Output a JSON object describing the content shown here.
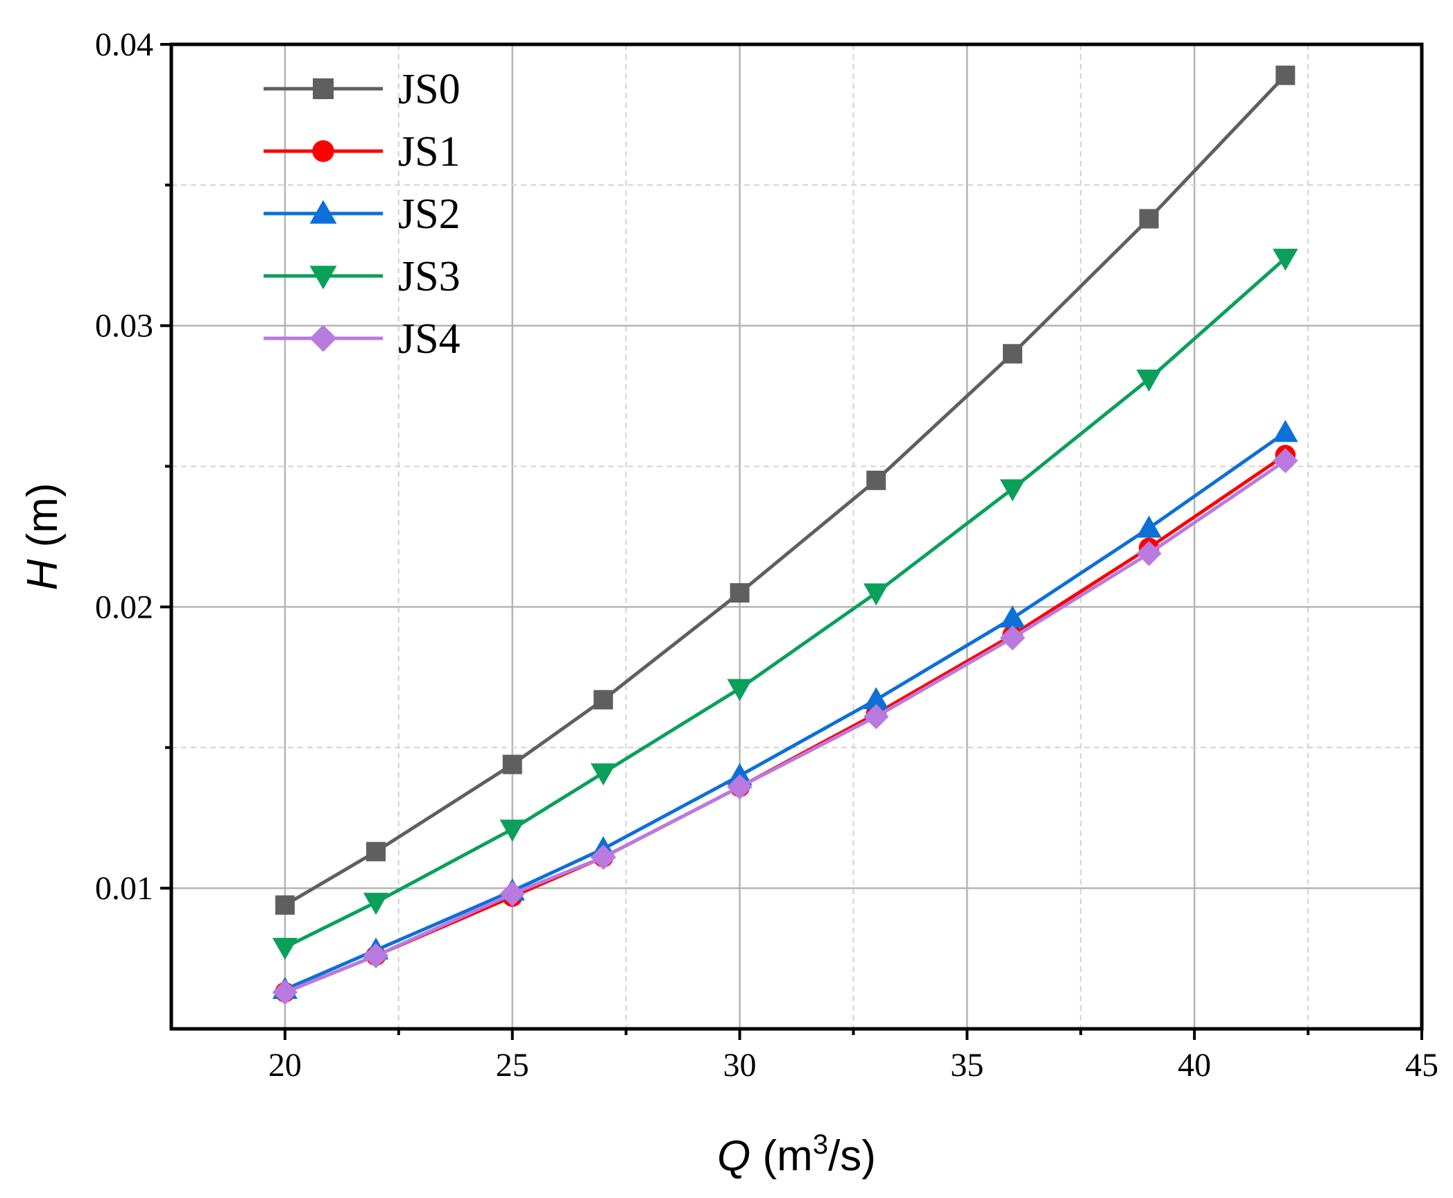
{
  "chart_data": {
    "type": "line",
    "xlabel": {
      "var": "Q",
      "unit_pre": " (m",
      "sup": "3",
      "unit_post": "/s)"
    },
    "ylabel": {
      "var": "H",
      "unit": " (m)"
    },
    "xlim": [
      17.5,
      45
    ],
    "ylim": [
      0.005,
      0.04
    ],
    "x_ticks": [
      20,
      25,
      30,
      35,
      40,
      45
    ],
    "x_tick_labels": [
      "20",
      "25",
      "30",
      "35",
      "40",
      "45"
    ],
    "x_minor_ticks": [
      22.5,
      27.5,
      32.5,
      37.5,
      42.5
    ],
    "y_ticks": [
      0.01,
      0.02,
      0.03,
      0.04
    ],
    "y_tick_labels": [
      "0.01",
      "0.02",
      "0.03",
      "0.04"
    ],
    "y_minor_ticks": [
      0.015,
      0.025,
      0.035
    ],
    "grid": true,
    "legend_position": "top-left",
    "x": [
      20,
      22,
      25,
      27,
      30,
      33,
      36,
      39,
      42
    ],
    "series": [
      {
        "name": "JS0",
        "marker": "square",
        "color": "#5f5f5f",
        "values": [
          0.0094,
          0.0113,
          0.0144,
          0.0167,
          0.0205,
          0.0245,
          0.029,
          0.0338,
          0.0389
        ]
      },
      {
        "name": "JS1",
        "marker": "circle",
        "color": "#ff0000",
        "values": [
          0.0063,
          0.0076,
          0.0097,
          0.0111,
          0.0136,
          0.0162,
          0.019,
          0.0221,
          0.0254
        ]
      },
      {
        "name": "JS2",
        "marker": "triangle-up",
        "color": "#0d6fd8",
        "values": [
          0.0064,
          0.0078,
          0.0099,
          0.0114,
          0.014,
          0.0167,
          0.0196,
          0.0228,
          0.0262
        ]
      },
      {
        "name": "JS3",
        "marker": "triangle-down",
        "color": "#0aa05a",
        "values": [
          0.0079,
          0.0095,
          0.0121,
          0.0141,
          0.0171,
          0.0205,
          0.0242,
          0.0281,
          0.0324
        ]
      },
      {
        "name": "JS4",
        "marker": "diamond",
        "color": "#b97ae0",
        "values": [
          0.0063,
          0.0076,
          0.0098,
          0.0111,
          0.0136,
          0.0161,
          0.0189,
          0.0219,
          0.0252
        ]
      }
    ]
  }
}
